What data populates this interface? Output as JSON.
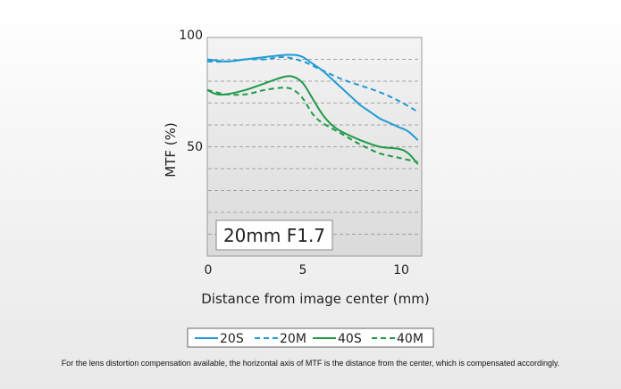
{
  "chart_data": {
    "type": "line",
    "title": "",
    "xlabel": "Distance from image center (mm)",
    "ylabel": "MTF (%)",
    "xlim": [
      0,
      11.2
    ],
    "ylim": [
      0,
      100
    ],
    "xticks": [
      0,
      5,
      10
    ],
    "yticks": [
      50,
      100
    ],
    "grid": "horizontal dashed every 10%",
    "annotation": "20mm F1.7",
    "legend_position": "bottom-center",
    "series": [
      {
        "name": "20S",
        "style": "solid",
        "color": "#1e9ad6",
        "x": [
          0,
          1,
          2,
          3,
          4,
          4.6,
          5,
          5.5,
          6,
          6.5,
          7,
          7.5,
          8,
          8.5,
          9,
          9.5,
          10,
          10.5,
          11
        ],
        "y": [
          90,
          89,
          90,
          91,
          92,
          92,
          91,
          88,
          85,
          81,
          77,
          73,
          69,
          66,
          63,
          61,
          59,
          57,
          53
        ]
      },
      {
        "name": "20M",
        "style": "dashed",
        "color": "#1e9ad6",
        "x": [
          0,
          1,
          2,
          3,
          4,
          5,
          6,
          7,
          8,
          9,
          10,
          11
        ],
        "y": [
          89,
          89,
          90,
          90,
          91,
          89,
          85,
          81,
          78,
          75,
          71,
          66
        ]
      },
      {
        "name": "40S",
        "style": "solid",
        "color": "#1f9a48",
        "x": [
          0,
          0.5,
          1,
          2,
          3,
          4,
          4.5,
          5,
          5.5,
          6,
          6.5,
          7,
          8,
          9,
          10,
          10.5,
          11
        ],
        "y": [
          76,
          74,
          74,
          76,
          79,
          82,
          82,
          79,
          72,
          65,
          60,
          57,
          53,
          50,
          49,
          47,
          42
        ]
      },
      {
        "name": "40M",
        "style": "dashed",
        "color": "#1f9a48",
        "x": [
          0,
          1,
          2,
          3,
          4,
          4.5,
          5,
          5.5,
          6,
          7,
          8,
          9,
          10,
          11
        ],
        "y": [
          76,
          74,
          74,
          76,
          77,
          76,
          72,
          65,
          61,
          56,
          51,
          47,
          45,
          43
        ]
      }
    ]
  },
  "footnote": "For the lens distortion compensation available, the horizontal axis of MTF is the distance from the center, which is compensated accordingly."
}
